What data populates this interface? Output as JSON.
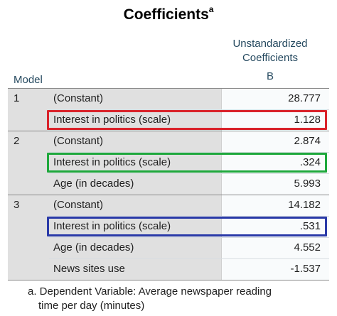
{
  "title": "Coefficients",
  "title_superscript": "a",
  "header": {
    "coef_line1": "Unstandardized",
    "coef_line2": "Coefficients",
    "coef_b": "B",
    "model": "Model"
  },
  "rows": [
    {
      "model": "1",
      "variable": "(Constant)",
      "value": "28.777"
    },
    {
      "model": "",
      "variable": "Interest in politics (scale)",
      "value": "1.128"
    },
    {
      "model": "2",
      "variable": "(Constant)",
      "value": "2.874"
    },
    {
      "model": "",
      "variable": "Interest in politics (scale)",
      "value": ".324"
    },
    {
      "model": "",
      "variable": "Age (in decades)",
      "value": "5.993"
    },
    {
      "model": "3",
      "variable": "(Constant)",
      "value": "14.182"
    },
    {
      "model": "",
      "variable": "Interest in politics (scale)",
      "value": ".531"
    },
    {
      "model": "",
      "variable": "Age (in decades)",
      "value": "4.552"
    },
    {
      "model": "",
      "variable": "News sites use",
      "value": "-1.537"
    }
  ],
  "highlight_colors": {
    "model1": "#d9232b",
    "model2": "#1ea83c",
    "model3": "#2a3aa8"
  },
  "footnote": {
    "line1": "a. Dependent Variable: Average newspaper reading",
    "line2": "time per day (minutes)"
  }
}
